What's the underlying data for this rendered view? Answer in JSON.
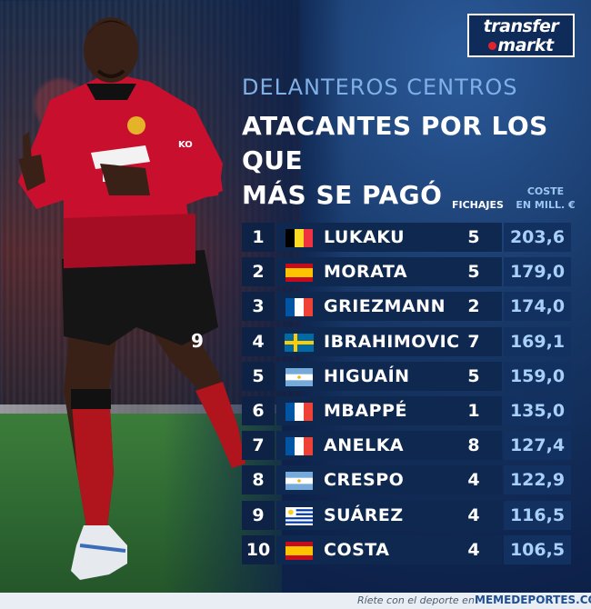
{
  "logo": {
    "line1": "transfer",
    "line2": "markt"
  },
  "subtitle": "DELANTEROS CENTROS",
  "title_line1": "ATACANTES POR LOS QUE",
  "title_line2": "MÁS SE PAGÓ",
  "headers": {
    "fichajes": "FICHAJES",
    "coste_line1": "COSTE",
    "coste_line2": "EN MILL. €"
  },
  "colors": {
    "accent": "#a8d0f8",
    "background": "#0d2149",
    "row": "#0f2850"
  },
  "rows": [
    {
      "rank": "1",
      "name": "LUKAKU",
      "country": "belgium",
      "fichajes": "5",
      "coste": "203,6"
    },
    {
      "rank": "2",
      "name": "MORATA",
      "country": "spain",
      "fichajes": "5",
      "coste": "179,0"
    },
    {
      "rank": "3",
      "name": "GRIEZMANN",
      "country": "france",
      "fichajes": "2",
      "coste": "174,0"
    },
    {
      "rank": "4",
      "name": "IBRAHIMOVIC",
      "country": "sweden",
      "fichajes": "7",
      "coste": "169,1"
    },
    {
      "rank": "5",
      "name": "HIGUAÍN",
      "country": "argentina",
      "fichajes": "5",
      "coste": "159,0"
    },
    {
      "rank": "6",
      "name": "MBAPPÉ",
      "country": "france",
      "fichajes": "1",
      "coste": "135,0"
    },
    {
      "rank": "7",
      "name": "ANELKA",
      "country": "france",
      "fichajes": "8",
      "coste": "127,4"
    },
    {
      "rank": "8",
      "name": "CRESPO",
      "country": "argentina",
      "fichajes": "4",
      "coste": "122,9"
    },
    {
      "rank": "9",
      "name": "SUÁREZ",
      "country": "uruguay",
      "fichajes": "4",
      "coste": "116,5"
    },
    {
      "rank": "10",
      "name": "COSTA",
      "country": "spain",
      "fichajes": "4",
      "coste": "106,5"
    }
  ],
  "footer": {
    "slogan": "Ríete con el deporte en",
    "site": "MEMEDEPORTES.COM"
  }
}
